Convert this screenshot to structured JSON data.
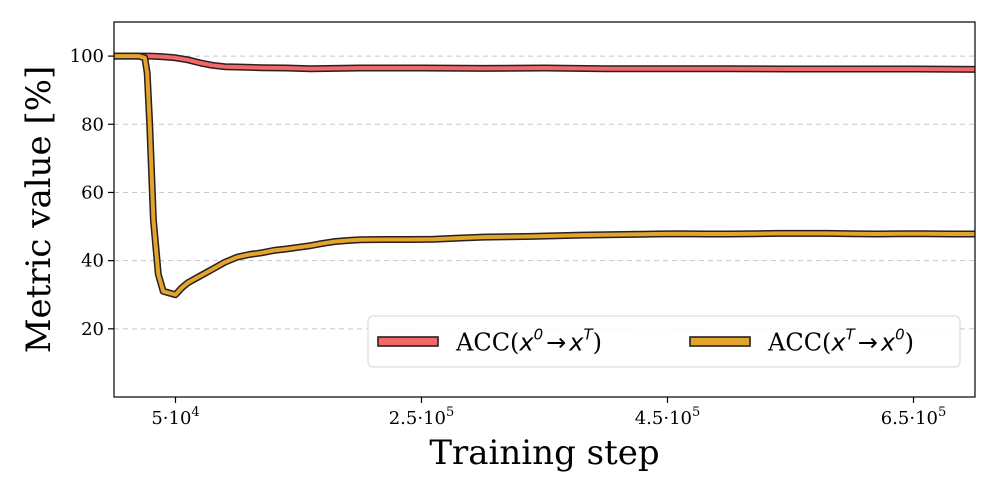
{
  "chart_data": {
    "type": "line",
    "xlabel": "Training step",
    "ylabel": "Metric value [%]",
    "xlim": [
      0,
      700000
    ],
    "ylim": [
      0,
      110
    ],
    "x_ticks": [
      {
        "value": 50000,
        "mantissa": "5",
        "exp": "4"
      },
      {
        "value": 250000,
        "mantissa": "2.5",
        "exp": "5"
      },
      {
        "value": 450000,
        "mantissa": "4.5",
        "exp": "5"
      },
      {
        "value": 650000,
        "mantissa": "6.5",
        "exp": "5"
      }
    ],
    "y_ticks": [
      20,
      40,
      60,
      80,
      100
    ],
    "grid": "horizontal dashed",
    "legend_location": "lower-right",
    "series": [
      {
        "name": "ACC(x^0 → x^T)",
        "legend": {
          "prefix": "ACC(",
          "a": "x",
          "a_sup": "0",
          "arrow": "→",
          "b": "x",
          "b_sup": "T",
          "suffix": ")"
        },
        "color": "#f4676b",
        "edge_color": "#2b1f1f",
        "x": [
          0,
          20000,
          30000,
          40000,
          50000,
          60000,
          70000,
          80000,
          90000,
          100000,
          120000,
          140000,
          160000,
          180000,
          200000,
          250000,
          300000,
          350000,
          400000,
          450000,
          500000,
          550000,
          600000,
          650000,
          700000
        ],
        "y": [
          100,
          100,
          100,
          99.8,
          99.5,
          98.9,
          98.0,
          97.3,
          96.9,
          96.8,
          96.6,
          96.5,
          96.3,
          96.4,
          96.5,
          96.5,
          96.4,
          96.5,
          96.3,
          96.3,
          96.3,
          96.2,
          96.2,
          96.2,
          96.1
        ]
      },
      {
        "name": "ACC(x^T → x^0)",
        "legend": {
          "prefix": "ACC(",
          "a": "x",
          "a_sup": "T",
          "arrow": "→",
          "b": "x",
          "b_sup": "0",
          "suffix": ")"
        },
        "color": "#e0a52a",
        "edge_color": "#2b1f1f",
        "x": [
          0,
          20000,
          25000,
          27000,
          29000,
          32000,
          36000,
          40000,
          45000,
          50000,
          55000,
          60000,
          70000,
          80000,
          90000,
          100000,
          110000,
          120000,
          130000,
          140000,
          150000,
          160000,
          170000,
          180000,
          190000,
          200000,
          220000,
          240000,
          260000,
          280000,
          300000,
          320000,
          340000,
          360000,
          380000,
          400000,
          420000,
          440000,
          460000,
          480000,
          500000,
          520000,
          540000,
          560000,
          580000,
          600000,
          620000,
          640000,
          660000,
          680000,
          700000
        ],
        "y": [
          100,
          100,
          99.5,
          95,
          80,
          52,
          36,
          31,
          30.5,
          30,
          32,
          33.5,
          35.5,
          37.5,
          39.5,
          41,
          41.8,
          42.3,
          43,
          43.4,
          43.9,
          44.4,
          45.1,
          45.6,
          45.9,
          46.1,
          46.2,
          46.2,
          46.3,
          46.6,
          46.9,
          47.0,
          47.1,
          47.3,
          47.5,
          47.6,
          47.7,
          47.8,
          47.9,
          47.8,
          47.8,
          47.9,
          48.0,
          48.0,
          48.0,
          47.9,
          47.8,
          47.9,
          47.9,
          47.8,
          47.8
        ]
      }
    ]
  }
}
